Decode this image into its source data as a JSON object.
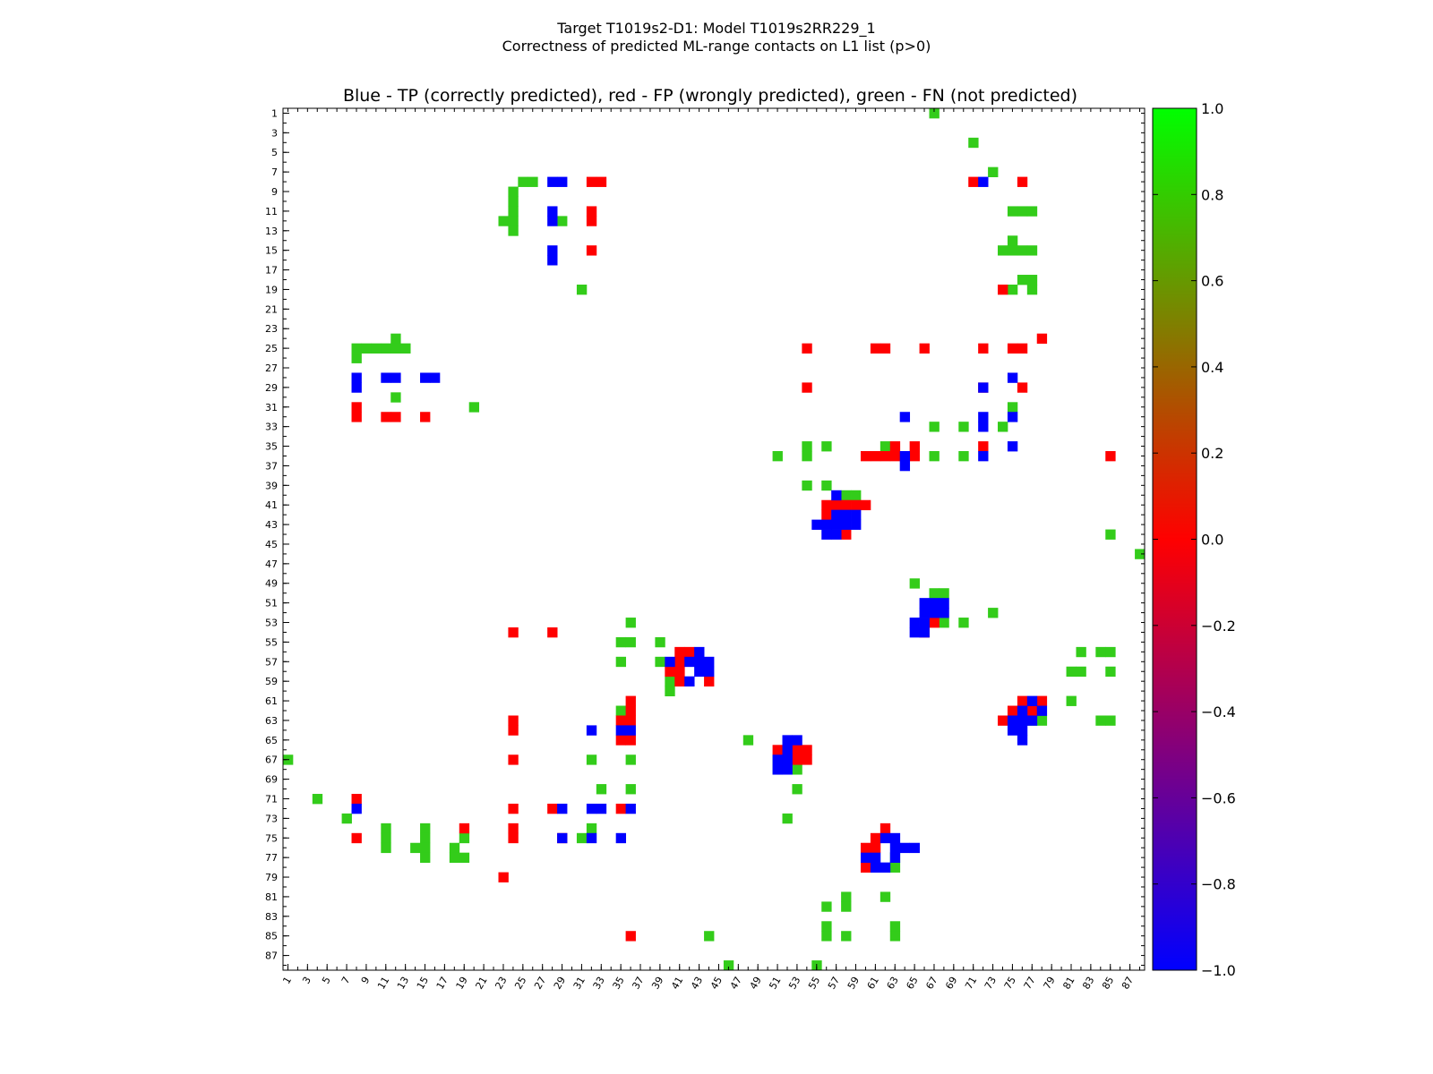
{
  "header": {
    "line1": "Target T1019s2-D1: Model T1019s2RR229_1",
    "line2": "Correctness of predicted ML-range contacts on L1 list (p>0)"
  },
  "chart_data": {
    "type": "heatmap",
    "title": "Blue - TP (correctly predicted), red - FP (wrongly predicted), green - FN (not predicted)",
    "n": 88,
    "xlim": [
      1,
      88
    ],
    "ylim": [
      1,
      88
    ],
    "x_ticks": [
      "1",
      "3",
      "5",
      "7",
      "9",
      "11",
      "13",
      "15",
      "17",
      "19",
      "21",
      "23",
      "25",
      "27",
      "29",
      "31",
      "33",
      "35",
      "37",
      "39",
      "41",
      "43",
      "45",
      "47",
      "49",
      "51",
      "53",
      "55",
      "57",
      "59",
      "61",
      "63",
      "65",
      "67",
      "69",
      "71",
      "73",
      "75",
      "77",
      "79",
      "81",
      "83",
      "85",
      "87"
    ],
    "y_ticks": [
      "1",
      "3",
      "5",
      "7",
      "9",
      "11",
      "13",
      "15",
      "17",
      "19",
      "21",
      "23",
      "25",
      "27",
      "29",
      "31",
      "33",
      "35",
      "37",
      "39",
      "41",
      "43",
      "45",
      "47",
      "49",
      "51",
      "53",
      "55",
      "57",
      "59",
      "61",
      "63",
      "65",
      "67",
      "69",
      "71",
      "73",
      "75",
      "77",
      "79",
      "81",
      "83",
      "85",
      "87"
    ],
    "colorbar": {
      "range": [
        -1.0,
        1.0
      ],
      "ticks": [
        "1.0",
        "0.8",
        "0.6",
        "0.4",
        "0.2",
        "0.0",
        "−0.2",
        "−0.4",
        "−0.6",
        "−0.8",
        "−1.0"
      ],
      "colors": [
        "#0000ff",
        "#ff0000",
        "#00ff00"
      ]
    },
    "value_legend": {
      "TP": -1.0,
      "FP": 0.0,
      "FN": 0.8
    },
    "cell_colors": {
      "TP": "#0000ff",
      "FP": "#ff0000",
      "FN": "#33cc1a"
    },
    "cells": {
      "TP": [
        [
          28,
          8
        ],
        [
          29,
          8
        ],
        [
          28,
          11
        ],
        [
          28,
          12
        ],
        [
          28,
          15
        ],
        [
          28,
          16
        ],
        [
          72,
          8
        ],
        [
          75,
          28
        ],
        [
          72,
          29
        ],
        [
          72,
          32
        ],
        [
          72,
          33
        ],
        [
          75,
          32
        ],
        [
          75,
          35
        ],
        [
          72,
          36
        ],
        [
          64,
          32
        ],
        [
          64,
          36
        ],
        [
          64,
          37
        ],
        [
          57,
          40
        ],
        [
          57,
          42
        ],
        [
          58,
          42
        ],
        [
          59,
          42
        ],
        [
          56,
          43
        ],
        [
          57,
          43
        ],
        [
          58,
          43
        ],
        [
          59,
          43
        ],
        [
          56,
          44
        ],
        [
          57,
          44
        ],
        [
          55,
          43
        ],
        [
          66,
          51
        ],
        [
          67,
          51
        ],
        [
          68,
          51
        ],
        [
          68,
          52
        ],
        [
          66,
          52
        ],
        [
          67,
          52
        ],
        [
          66,
          53
        ],
        [
          65,
          53
        ],
        [
          65,
          54
        ],
        [
          66,
          54
        ],
        [
          8,
          28
        ],
        [
          8,
          29
        ],
        [
          11,
          28
        ],
        [
          12,
          28
        ],
        [
          15,
          28
        ],
        [
          16,
          28
        ],
        [
          43,
          56
        ],
        [
          42,
          57
        ],
        [
          43,
          57
        ],
        [
          44,
          57
        ],
        [
          40,
          57
        ],
        [
          43,
          58
        ],
        [
          44,
          58
        ],
        [
          42,
          59
        ],
        [
          77,
          61
        ],
        [
          78,
          62
        ],
        [
          76,
          62
        ],
        [
          76,
          63
        ],
        [
          77,
          63
        ],
        [
          75,
          63
        ],
        [
          75,
          64
        ],
        [
          76,
          64
        ],
        [
          76,
          65
        ],
        [
          32,
          64
        ],
        [
          35,
          64
        ],
        [
          36,
          64
        ],
        [
          52,
          65
        ],
        [
          53,
          65
        ],
        [
          52,
          66
        ],
        [
          51,
          67
        ],
        [
          52,
          67
        ],
        [
          51,
          68
        ],
        [
          52,
          68
        ],
        [
          8,
          72
        ],
        [
          29,
          72
        ],
        [
          32,
          72
        ],
        [
          33,
          72
        ],
        [
          36,
          72
        ],
        [
          29,
          75
        ],
        [
          32,
          75
        ],
        [
          35,
          75
        ],
        [
          62,
          75
        ],
        [
          63,
          75
        ],
        [
          64,
          76
        ],
        [
          63,
          76
        ],
        [
          65,
          76
        ],
        [
          63,
          77
        ],
        [
          60,
          77
        ],
        [
          61,
          77
        ],
        [
          62,
          78
        ],
        [
          61,
          78
        ]
      ],
      "FP": [
        [
          32,
          8
        ],
        [
          33,
          8
        ],
        [
          32,
          11
        ],
        [
          32,
          12
        ],
        [
          32,
          15
        ],
        [
          71,
          8
        ],
        [
          76,
          8
        ],
        [
          74,
          19
        ],
        [
          78,
          24
        ],
        [
          54,
          25
        ],
        [
          61,
          25
        ],
        [
          62,
          25
        ],
        [
          66,
          25
        ],
        [
          72,
          25
        ],
        [
          75,
          25
        ],
        [
          76,
          25
        ],
        [
          54,
          29
        ],
        [
          72,
          29
        ],
        [
          76,
          29
        ],
        [
          72,
          35
        ],
        [
          60,
          36
        ],
        [
          61,
          36
        ],
        [
          62,
          36
        ],
        [
          63,
          36
        ],
        [
          65,
          36
        ],
        [
          63,
          35
        ],
        [
          65,
          35
        ],
        [
          85,
          36
        ],
        [
          8,
          31
        ],
        [
          8,
          32
        ],
        [
          11,
          32
        ],
        [
          12,
          32
        ],
        [
          15,
          32
        ],
        [
          58,
          41
        ],
        [
          59,
          41
        ],
        [
          60,
          41
        ],
        [
          57,
          41
        ],
        [
          56,
          41
        ],
        [
          56,
          42
        ],
        [
          58,
          44
        ],
        [
          67,
          52
        ],
        [
          67,
          53
        ],
        [
          66,
          54
        ],
        [
          24,
          54
        ],
        [
          28,
          54
        ],
        [
          41,
          56
        ],
        [
          42,
          56
        ],
        [
          40,
          58
        ],
        [
          41,
          58
        ],
        [
          41,
          59
        ],
        [
          44,
          59
        ],
        [
          41,
          57
        ],
        [
          76,
          61
        ],
        [
          78,
          61
        ],
        [
          77,
          62
        ],
        [
          75,
          62
        ],
        [
          74,
          63
        ],
        [
          36,
          61
        ],
        [
          36,
          62
        ],
        [
          36,
          63
        ],
        [
          35,
          63
        ],
        [
          35,
          65
        ],
        [
          36,
          65
        ],
        [
          24,
          63
        ],
        [
          24,
          64
        ],
        [
          24,
          67
        ],
        [
          53,
          66
        ],
        [
          53,
          67
        ],
        [
          54,
          67
        ],
        [
          51,
          66
        ],
        [
          54,
          66
        ],
        [
          8,
          71
        ],
        [
          24,
          72
        ],
        [
          28,
          72
        ],
        [
          35,
          72
        ],
        [
          19,
          74
        ],
        [
          24,
          74
        ],
        [
          24,
          75
        ],
        [
          8,
          75
        ],
        [
          29,
          75
        ],
        [
          62,
          74
        ],
        [
          61,
          75
        ],
        [
          60,
          76
        ],
        [
          61,
          76
        ],
        [
          60,
          78
        ],
        [
          23,
          79
        ],
        [
          36,
          85
        ]
      ],
      "FN": [
        [
          67,
          1
        ],
        [
          71,
          4
        ],
        [
          73,
          7
        ],
        [
          25,
          8
        ],
        [
          26,
          8
        ],
        [
          24,
          9
        ],
        [
          24,
          10
        ],
        [
          24,
          11
        ],
        [
          23,
          12
        ],
        [
          24,
          12
        ],
        [
          24,
          13
        ],
        [
          29,
          12
        ],
        [
          76,
          11
        ],
        [
          77,
          11
        ],
        [
          75,
          11
        ],
        [
          74,
          15
        ],
        [
          75,
          15
        ],
        [
          76,
          15
        ],
        [
          77,
          15
        ],
        [
          75,
          14
        ],
        [
          76,
          18
        ],
        [
          77,
          18
        ],
        [
          75,
          19
        ],
        [
          77,
          19
        ],
        [
          31,
          19
        ],
        [
          12,
          24
        ],
        [
          8,
          25
        ],
        [
          9,
          25
        ],
        [
          10,
          25
        ],
        [
          11,
          25
        ],
        [
          12,
          25
        ],
        [
          13,
          25
        ],
        [
          8,
          26
        ],
        [
          12,
          30
        ],
        [
          20,
          31
        ],
        [
          75,
          31
        ],
        [
          67,
          33
        ],
        [
          70,
          33
        ],
        [
          74,
          33
        ],
        [
          54,
          35
        ],
        [
          56,
          35
        ],
        [
          62,
          35
        ],
        [
          51,
          36
        ],
        [
          54,
          36
        ],
        [
          67,
          36
        ],
        [
          70,
          36
        ],
        [
          54,
          39
        ],
        [
          56,
          39
        ],
        [
          58,
          40
        ],
        [
          59,
          40
        ],
        [
          85,
          44
        ],
        [
          88,
          46
        ],
        [
          65,
          49
        ],
        [
          67,
          50
        ],
        [
          68,
          50
        ],
        [
          68,
          53
        ],
        [
          70,
          53
        ],
        [
          73,
          52
        ],
        [
          36,
          53
        ],
        [
          35,
          55
        ],
        [
          36,
          55
        ],
        [
          39,
          55
        ],
        [
          35,
          57
        ],
        [
          39,
          57
        ],
        [
          40,
          59
        ],
        [
          40,
          60
        ],
        [
          82,
          56
        ],
        [
          84,
          56
        ],
        [
          85,
          56
        ],
        [
          81,
          58
        ],
        [
          82,
          58
        ],
        [
          85,
          58
        ],
        [
          77,
          63
        ],
        [
          78,
          63
        ],
        [
          81,
          61
        ],
        [
          84,
          63
        ],
        [
          85,
          63
        ],
        [
          35,
          62
        ],
        [
          48,
          65
        ],
        [
          51,
          67
        ],
        [
          51,
          68
        ],
        [
          53,
          68
        ],
        [
          32,
          67
        ],
        [
          36,
          67
        ],
        [
          1,
          67
        ],
        [
          33,
          70
        ],
        [
          36,
          70
        ],
        [
          53,
          70
        ],
        [
          4,
          71
        ],
        [
          7,
          73
        ],
        [
          52,
          73
        ],
        [
          11,
          74
        ],
        [
          11,
          75
        ],
        [
          11,
          76
        ],
        [
          15,
          74
        ],
        [
          15,
          75
        ],
        [
          15,
          76
        ],
        [
          15,
          77
        ],
        [
          14,
          76
        ],
        [
          19,
          75
        ],
        [
          18,
          76
        ],
        [
          18,
          77
        ],
        [
          19,
          77
        ],
        [
          31,
          75
        ],
        [
          32,
          74
        ],
        [
          63,
          78
        ],
        [
          63,
          77
        ],
        [
          62,
          81
        ],
        [
          58,
          81
        ],
        [
          58,
          82
        ],
        [
          56,
          82
        ],
        [
          56,
          84
        ],
        [
          56,
          85
        ],
        [
          58,
          85
        ],
        [
          63,
          84
        ],
        [
          63,
          85
        ],
        [
          44,
          85
        ],
        [
          46,
          88
        ],
        [
          55,
          88
        ]
      ]
    }
  }
}
